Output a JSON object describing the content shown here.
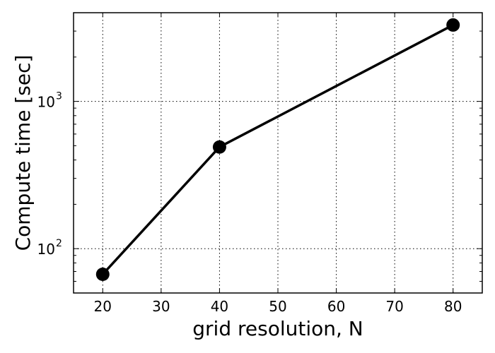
{
  "chart_data": {
    "type": "line",
    "xlabel": "grid resolution, N",
    "ylabel": "Compute time [sec]",
    "x_ticks": [
      20,
      30,
      40,
      50,
      60,
      70,
      80
    ],
    "xlim": [
      15,
      85
    ],
    "y_scale": "log",
    "ylim": [
      50,
      4000
    ],
    "y_ticks": [
      {
        "value": 100,
        "base": "10",
        "exp": "2"
      },
      {
        "value": 1000,
        "base": "10",
        "exp": "3"
      }
    ],
    "grid": true,
    "series": [
      {
        "x": [
          20,
          40,
          80
        ],
        "y": [
          67,
          490,
          3300
        ],
        "color": "#000000",
        "marker": "circle"
      }
    ]
  }
}
